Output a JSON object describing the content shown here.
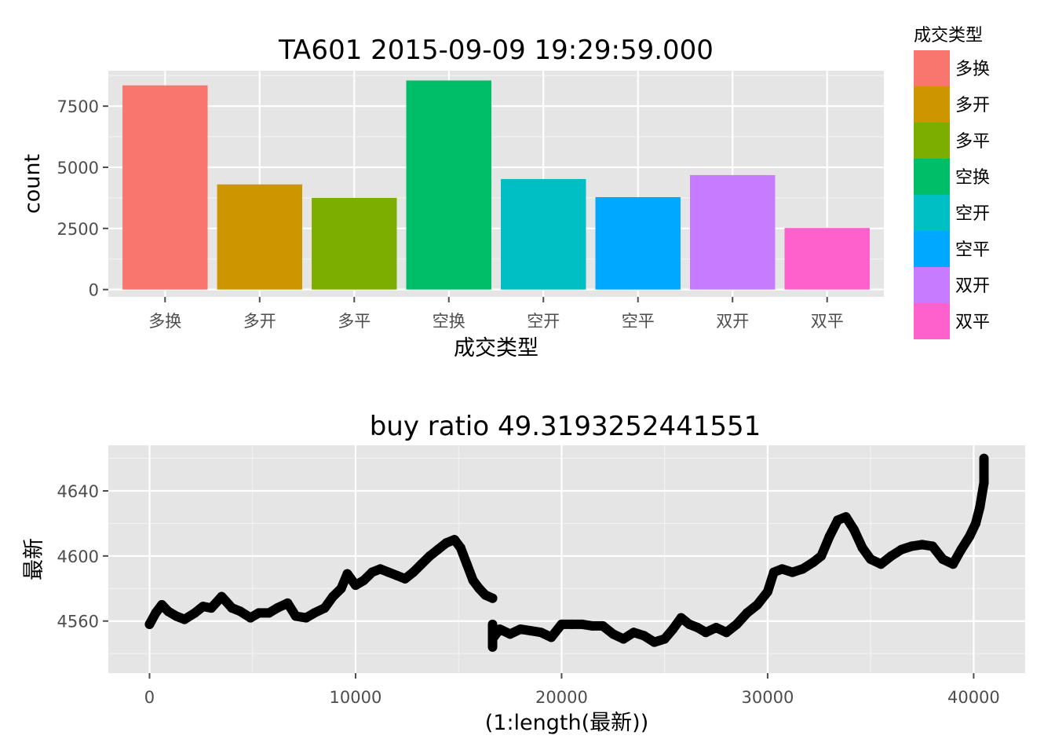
{
  "chart_data": [
    {
      "type": "bar",
      "title": "TA601 2015-09-09 19:29:59.000",
      "xlabel": "成交类型",
      "ylabel": "count",
      "categories": [
        "多换",
        "多开",
        "多平",
        "空换",
        "空开",
        "空平",
        "双开",
        "双平"
      ],
      "values": [
        8350,
        4300,
        3750,
        8550,
        4520,
        3780,
        4680,
        2520
      ],
      "colors": [
        "#F8766D",
        "#CD9600",
        "#7CAE00",
        "#00BE67",
        "#00BFC4",
        "#00A9FF",
        "#C77CFF",
        "#FF61CC"
      ],
      "ylim": [
        -300,
        8950
      ],
      "yticks": [
        0,
        2500,
        5000,
        7500
      ],
      "ytick_labels": [
        "0",
        "2500",
        "5000",
        "7500"
      ],
      "grid": true,
      "legend": {
        "title": "成交类型",
        "position": "right",
        "entries": [
          "多换",
          "多开",
          "多平",
          "空换",
          "空开",
          "空平",
          "双开",
          "双平"
        ]
      }
    },
    {
      "type": "scatter",
      "title": "buy ratio 49.3193252441551",
      "xlabel": "(1:length(最新))",
      "ylabel": "最新",
      "xlim": [
        -2000,
        42500
      ],
      "ylim": [
        4528,
        4668
      ],
      "xticks": [
        0,
        10000,
        20000,
        30000,
        40000
      ],
      "xtick_labels": [
        "0",
        "10000",
        "20000",
        "30000",
        "40000"
      ],
      "yticks": [
        4560,
        4600,
        4640
      ],
      "ytick_labels": [
        "4560",
        "4600",
        "4640"
      ],
      "grid": true,
      "point_color": "#000000",
      "x": [
        0,
        300,
        600,
        900,
        1300,
        1700,
        2200,
        2600,
        3000,
        3500,
        4000,
        4400,
        4900,
        5300,
        5800,
        6200,
        6700,
        7100,
        7600,
        8000,
        8500,
        8900,
        9300,
        9600,
        10000,
        10400,
        10800,
        11200,
        11600,
        12000,
        12400,
        12800,
        13200,
        13600,
        14000,
        14400,
        14800,
        15100,
        15400,
        15700,
        16000,
        16300,
        16650,
        16700,
        17000,
        17500,
        18000,
        18500,
        19000,
        19500,
        20000,
        20500,
        21000,
        21500,
        22000,
        22500,
        23000,
        23500,
        24000,
        24500,
        25000,
        25400,
        25800,
        26200,
        26600,
        27000,
        27500,
        28000,
        28500,
        29000,
        29500,
        30000,
        30300,
        30700,
        31200,
        31700,
        32200,
        32600,
        33000,
        33400,
        33800,
        34200,
        34600,
        35000,
        35500,
        36000,
        36500,
        37000,
        37500,
        38000,
        38500,
        39000,
        39400,
        39800,
        40100,
        40300,
        40500
      ],
      "y": [
        4558,
        4565,
        4570,
        4566,
        4563,
        4561,
        4565,
        4569,
        4568,
        4575,
        4568,
        4566,
        4562,
        4565,
        4565,
        4568,
        4571,
        4563,
        4562,
        4565,
        4568,
        4575,
        4580,
        4589,
        4582,
        4585,
        4590,
        4592,
        4590,
        4588,
        4586,
        4590,
        4595,
        4600,
        4604,
        4608,
        4610,
        4605,
        4595,
        4585,
        4580,
        4576,
        4574,
        4550,
        4555,
        4552,
        4555,
        4554,
        4553,
        4550,
        4558,
        4558,
        4558,
        4557,
        4557,
        4552,
        4549,
        4553,
        4551,
        4547,
        4549,
        4555,
        4562,
        4558,
        4556,
        4553,
        4556,
        4553,
        4558,
        4565,
        4570,
        4578,
        4590,
        4592,
        4590,
        4592,
        4596,
        4600,
        4612,
        4622,
        4624,
        4616,
        4605,
        4598,
        4595,
        4600,
        4604,
        4606,
        4607,
        4606,
        4598,
        4595,
        4604,
        4612,
        4620,
        4630,
        4645
      ]
    }
  ]
}
